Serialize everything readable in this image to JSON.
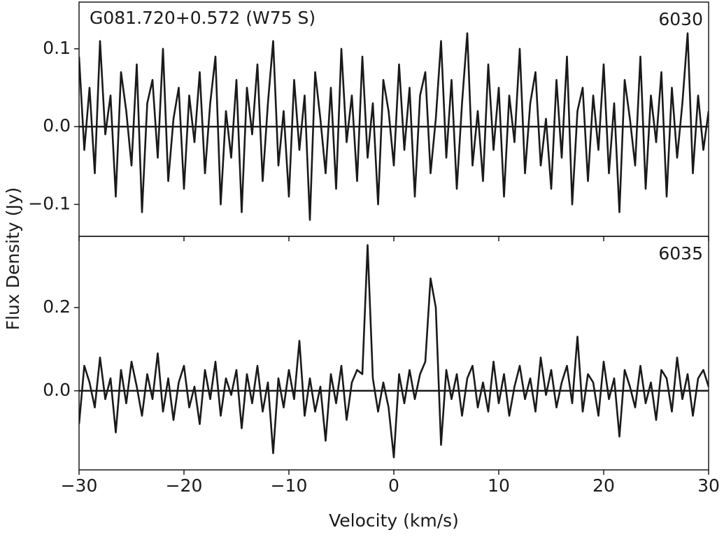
{
  "chart_data": [
    {
      "type": "line",
      "title": "G081.720+0.572 (W75 S)",
      "annotation": "6030",
      "ylabel": "Flux Density (Jy)",
      "x": [
        -30,
        -29.5,
        -29,
        -28.5,
        -28,
        -27.5,
        -27,
        -26.5,
        -26,
        -25.5,
        -25,
        -24.5,
        -24,
        -23.5,
        -23,
        -22.5,
        -22,
        -21.5,
        -21,
        -20.5,
        -20,
        -19.5,
        -19,
        -18.5,
        -18,
        -17.5,
        -17,
        -16.5,
        -16,
        -15.5,
        -15,
        -14.5,
        -14,
        -13.5,
        -13,
        -12.5,
        -12,
        -11.5,
        -11,
        -10.5,
        -10,
        -9.5,
        -9,
        -8.5,
        -8,
        -7.5,
        -7,
        -6.5,
        -6,
        -5.5,
        -5,
        -4.5,
        -4,
        -3.5,
        -3,
        -2.5,
        -2,
        -1.5,
        -1,
        -0.5,
        0,
        0.5,
        1,
        1.5,
        2,
        2.5,
        3,
        3.5,
        4,
        4.5,
        5,
        5.5,
        6,
        6.5,
        7,
        7.5,
        8,
        8.5,
        9,
        9.5,
        10,
        10.5,
        11,
        11.5,
        12,
        12.5,
        13,
        13.5,
        14,
        14.5,
        15,
        15.5,
        16,
        16.5,
        17,
        17.5,
        18,
        18.5,
        19,
        19.5,
        20,
        20.5,
        21,
        21.5,
        22,
        22.5,
        23,
        23.5,
        24,
        24.5,
        25,
        25.5,
        26,
        26.5,
        27,
        27.5,
        28,
        28.5,
        29,
        29.5,
        30
      ],
      "series": [
        {
          "color": "#1a1a1a",
          "values": [
            0.09,
            -0.03,
            0.05,
            -0.06,
            0.11,
            -0.01,
            0.04,
            -0.09,
            0.07,
            0.02,
            -0.05,
            0.08,
            -0.11,
            0.03,
            0.06,
            -0.04,
            0.1,
            -0.07,
            0.01,
            0.05,
            -0.08,
            0.04,
            -0.02,
            0.07,
            -0.06,
            0.03,
            0.09,
            -0.1,
            0.02,
            -0.04,
            0.06,
            -0.11,
            0.05,
            -0.01,
            0.08,
            -0.07,
            0.03,
            0.11,
            -0.05,
            0.02,
            -0.09,
            0.06,
            -0.03,
            0.04,
            -0.12,
            0.07,
            0.01,
            -0.06,
            0.05,
            -0.08,
            0.1,
            -0.02,
            0.04,
            -0.07,
            0.09,
            -0.04,
            0.03,
            -0.1,
            0.06,
            0.02,
            -0.05,
            0.08,
            -0.03,
            0.05,
            -0.09,
            0.04,
            0.07,
            -0.06,
            0.01,
            0.11,
            -0.04,
            0.06,
            -0.08,
            0.03,
            0.12,
            -0.05,
            0.02,
            -0.07,
            0.08,
            -0.03,
            0.05,
            -0.09,
            0.04,
            -0.02,
            0.1,
            -0.06,
            0.03,
            0.07,
            -0.05,
            0.01,
            -0.08,
            0.06,
            -0.04,
            0.09,
            -0.1,
            0.02,
            0.05,
            -0.07,
            0.04,
            -0.03,
            0.08,
            -0.06,
            0.03,
            -0.11,
            0.06,
            0.01,
            -0.05,
            0.09,
            -0.08,
            0.04,
            -0.02,
            0.07,
            -0.09,
            0.05,
            -0.04,
            0.03,
            0.12,
            -0.06,
            0.04,
            -0.03,
            0.02
          ]
        }
      ],
      "baseline": 0,
      "xlim": [
        -30,
        30
      ],
      "ylim": [
        -0.141,
        0.16
      ],
      "yticks": [
        {
          "value": -0.1,
          "label": "−0.1"
        },
        {
          "value": 0,
          "label": "0.0"
        },
        0.1
      ]
    },
    {
      "type": "line",
      "annotation": "6035",
      "xlabel": "Velocity (km/s)",
      "x": [
        -30,
        -29.5,
        -29,
        -28.5,
        -28,
        -27.5,
        -27,
        -26.5,
        -26,
        -25.5,
        -25,
        -24.5,
        -24,
        -23.5,
        -23,
        -22.5,
        -22,
        -21.5,
        -21,
        -20.5,
        -20,
        -19.5,
        -19,
        -18.5,
        -18,
        -17.5,
        -17,
        -16.5,
        -16,
        -15.5,
        -15,
        -14.5,
        -14,
        -13.5,
        -13,
        -12.5,
        -12,
        -11.5,
        -11,
        -10.5,
        -10,
        -9.5,
        -9,
        -8.5,
        -8,
        -7.5,
        -7,
        -6.5,
        -6,
        -5.5,
        -5,
        -4.5,
        -4,
        -3.5,
        -3,
        -2.5,
        -2,
        -1.5,
        -1,
        -0.5,
        0,
        0.5,
        1,
        1.5,
        2,
        2.5,
        3,
        3.5,
        4,
        4.5,
        5,
        5.5,
        6,
        6.5,
        7,
        7.5,
        8,
        8.5,
        9,
        9.5,
        10,
        10.5,
        11,
        11.5,
        12,
        12.5,
        13,
        13.5,
        14,
        14.5,
        15,
        15.5,
        16,
        16.5,
        17,
        17.5,
        18,
        18.5,
        19,
        19.5,
        20,
        20.5,
        21,
        21.5,
        22,
        22.5,
        23,
        23.5,
        24,
        24.5,
        25,
        25.5,
        26,
        26.5,
        27,
        27.5,
        28,
        28.5,
        29,
        29.5,
        30
      ],
      "series": [
        {
          "color": "#1a1a1a",
          "values": [
            -0.08,
            0.06,
            0.02,
            -0.04,
            0.08,
            -0.02,
            0.03,
            -0.1,
            0.05,
            -0.03,
            0.07,
            0.01,
            -0.06,
            0.04,
            -0.02,
            0.09,
            -0.05,
            0.03,
            -0.07,
            0.02,
            0.06,
            -0.04,
            0.01,
            -0.08,
            0.05,
            -0.02,
            0.07,
            -0.06,
            0.03,
            -0.01,
            0.05,
            -0.09,
            0.04,
            -0.03,
            0.06,
            -0.05,
            0.02,
            -0.15,
            0.03,
            -0.04,
            0.05,
            -0.02,
            0.12,
            -0.06,
            0.03,
            -0.05,
            0.01,
            -0.12,
            0.04,
            -0.03,
            0.06,
            -0.07,
            0.02,
            0.05,
            0.04,
            0.35,
            0.03,
            -0.05,
            0.02,
            -0.04,
            -0.16,
            0.04,
            -0.03,
            0.05,
            -0.02,
            0.04,
            0.07,
            0.27,
            0.2,
            -0.13,
            0.05,
            -0.02,
            0.04,
            -0.06,
            0.03,
            0.06,
            -0.04,
            0.02,
            -0.05,
            0.07,
            -0.03,
            0.04,
            -0.06,
            0.01,
            0.06,
            -0.02,
            0.03,
            -0.05,
            0.08,
            -0.01,
            0.05,
            -0.04,
            0.02,
            0.06,
            -0.03,
            0.13,
            -0.05,
            0.04,
            0.02,
            -0.06,
            0.07,
            -0.02,
            0.03,
            -0.11,
            0.05,
            0.01,
            -0.04,
            0.06,
            -0.03,
            0.02,
            -0.07,
            0.05,
            0.03,
            -0.05,
            0.08,
            -0.02,
            0.04,
            -0.06,
            0.03,
            0.05,
            0.01
          ]
        }
      ],
      "baseline": 0,
      "xlim": [
        -30,
        30
      ],
      "xticks": [
        {
          "value": -30,
          "label": "−30"
        },
        {
          "value": -20,
          "label": "−20"
        },
        {
          "value": -10,
          "label": "−10"
        },
        0,
        10,
        20,
        30
      ],
      "ylim": [
        -0.19,
        0.371
      ],
      "yticks": [
        {
          "value": 0,
          "label": "0.0"
        },
        0.2
      ]
    }
  ]
}
